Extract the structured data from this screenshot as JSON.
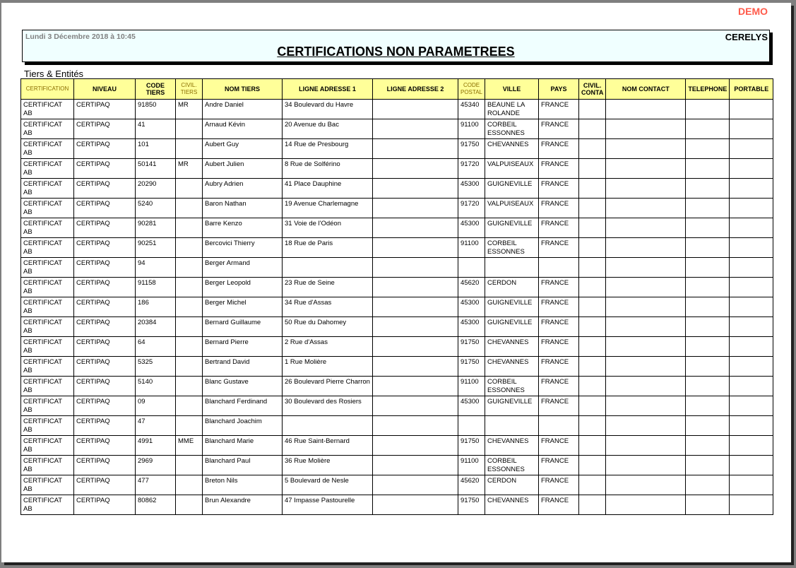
{
  "watermark": "DEMO",
  "header": {
    "date": "Lundi 3 Décembre 2018 à 10:45",
    "company": "CERELYS",
    "title": "CERTIFICATIONS NON PARAMETREES"
  },
  "section": "Tiers & Entités",
  "colors": {
    "header_bg": "#ffff99",
    "title_bg": "#f0ffff",
    "watermark": "#ff5a4a"
  },
  "columns": [
    {
      "label": "CERTIFICATION",
      "small": true
    },
    {
      "label": "NIVEAU"
    },
    {
      "label": "CODE TIERS"
    },
    {
      "label": "CIVIL. TIERS",
      "small": true
    },
    {
      "label": "NOM TIERS"
    },
    {
      "label": "LIGNE ADRESSE 1"
    },
    {
      "label": "LIGNE ADRESSE 2"
    },
    {
      "label": "CODE POSTAL",
      "small": true
    },
    {
      "label": "VILLE"
    },
    {
      "label": "PAYS"
    },
    {
      "label": "CIVIL. CONTA"
    },
    {
      "label": "NOM CONTACT"
    },
    {
      "label": "TELEPHONE"
    },
    {
      "label": "PORTABLE"
    }
  ],
  "rows": [
    [
      "CERTIFICAT AB",
      "CERTIPAQ",
      "91850",
      "MR",
      "Andre Daniel",
      "34 Boulevard du Havre",
      "",
      "45340",
      "BEAUNE LA ROLANDE",
      "FRANCE",
      "",
      "",
      "",
      ""
    ],
    [
      "CERTIFICAT AB",
      "CERTIPAQ",
      "41",
      "",
      "Arnaud Kévin",
      "20 Avenue du Bac",
      "",
      "91100",
      "CORBEIL ESSONNES",
      "FRANCE",
      "",
      "",
      "",
      ""
    ],
    [
      "CERTIFICAT AB",
      "CERTIPAQ",
      "101",
      "",
      "Aubert Guy",
      "14 Rue de Presbourg",
      "",
      "91750",
      "CHEVANNES",
      "FRANCE",
      "",
      "",
      "",
      ""
    ],
    [
      "CERTIFICAT AB",
      "CERTIPAQ",
      "50141",
      "MR",
      "Aubert Julien",
      "8 Rue de Solférino",
      "",
      "91720",
      "VALPUISEAUX",
      "FRANCE",
      "",
      "",
      "",
      ""
    ],
    [
      "CERTIFICAT AB",
      "CERTIPAQ",
      "20290",
      "",
      "Aubry Adrien",
      "41 Place Dauphine",
      "",
      "45300",
      "GUIGNEVILLE",
      "FRANCE",
      "",
      "",
      "",
      ""
    ],
    [
      "CERTIFICAT AB",
      "CERTIPAQ",
      "5240",
      "",
      "Baron Nathan",
      "19 Avenue Charlemagne",
      "",
      "91720",
      "VALPUISEAUX",
      "FRANCE",
      "",
      "",
      "",
      ""
    ],
    [
      "CERTIFICAT AB",
      "CERTIPAQ",
      "90281",
      "",
      "Barre Kenzo",
      "31 Voie de l'Odéon",
      "",
      "45300",
      "GUIGNEVILLE",
      "FRANCE",
      "",
      "",
      "",
      ""
    ],
    [
      "CERTIFICAT AB",
      "CERTIPAQ",
      "90251",
      "",
      "Bercovici Thierry",
      "18 Rue de Paris",
      "",
      "91100",
      "CORBEIL ESSONNES",
      "FRANCE",
      "",
      "",
      "",
      ""
    ],
    [
      "CERTIFICAT AB",
      "CERTIPAQ",
      "94",
      "",
      "Berger Armand",
      "",
      "",
      "",
      "",
      "",
      "",
      "",
      "",
      ""
    ],
    [
      "CERTIFICAT AB",
      "CERTIPAQ",
      "91158",
      "",
      "Berger Leopold",
      "23 Rue de Seine",
      "",
      "45620",
      "CERDON",
      "FRANCE",
      "",
      "",
      "",
      ""
    ],
    [
      "CERTIFICAT AB",
      "CERTIPAQ",
      "186",
      "",
      "Berger Michel",
      "34 Rue d'Assas",
      "",
      "45300",
      "GUIGNEVILLE",
      "FRANCE",
      "",
      "",
      "",
      ""
    ],
    [
      "CERTIFICAT AB",
      "CERTIPAQ",
      "20384",
      "",
      "Bernard Guillaume",
      "50 Rue du Dahomey",
      "",
      "45300",
      "GUIGNEVILLE",
      "FRANCE",
      "",
      "",
      "",
      ""
    ],
    [
      "CERTIFICAT AB",
      "CERTIPAQ",
      "64",
      "",
      "Bernard Pierre",
      "2 Rue d'Assas",
      "",
      "91750",
      "CHEVANNES",
      "FRANCE",
      "",
      "",
      "",
      ""
    ],
    [
      "CERTIFICAT AB",
      "CERTIPAQ",
      "5325",
      "",
      "Bertrand David",
      "1 Rue Molière",
      "",
      "91750",
      "CHEVANNES",
      "FRANCE",
      "",
      "",
      "",
      ""
    ],
    [
      "CERTIFICAT AB",
      "CERTIPAQ",
      "5140",
      "",
      "Blanc Gustave",
      "26 Boulevard Pierre Charron",
      "",
      "91100",
      "CORBEIL ESSONNES",
      "FRANCE",
      "",
      "",
      "",
      ""
    ],
    [
      "CERTIFICAT AB",
      "CERTIPAQ",
      "09",
      "",
      "Blanchard Ferdinand",
      "30 Boulevard des Rosiers",
      "",
      "45300",
      "GUIGNEVILLE",
      "FRANCE",
      "",
      "",
      "",
      ""
    ],
    [
      "CERTIFICAT AB",
      "CERTIPAQ",
      "47",
      "",
      "Blanchard Joachim",
      "",
      "",
      "",
      "",
      "",
      "",
      "",
      "",
      ""
    ],
    [
      "CERTIFICAT AB",
      "CERTIPAQ",
      "4991",
      "MME",
      "Blanchard Marie",
      "46 Rue Saint-Bernard",
      "",
      "91750",
      "CHEVANNES",
      "FRANCE",
      "",
      "",
      "",
      ""
    ],
    [
      "CERTIFICAT AB",
      "CERTIPAQ",
      "2969",
      "",
      "Blanchard Paul",
      "36 Rue Molière",
      "",
      "91100",
      "CORBEIL ESSONNES",
      "FRANCE",
      "",
      "",
      "",
      ""
    ],
    [
      "CERTIFICAT AB",
      "CERTIPAQ",
      "477",
      "",
      "Breton Nils",
      "5 Boulevard de Nesle",
      "",
      "45620",
      "CERDON",
      "FRANCE",
      "",
      "",
      "",
      ""
    ],
    [
      "CERTIFICAT AB",
      "CERTIPAQ",
      "80862",
      "",
      "Brun Alexandre",
      "47 Impasse Pastourelle",
      "",
      "91750",
      "CHEVANNES",
      "FRANCE",
      "",
      "",
      "",
      ""
    ]
  ]
}
